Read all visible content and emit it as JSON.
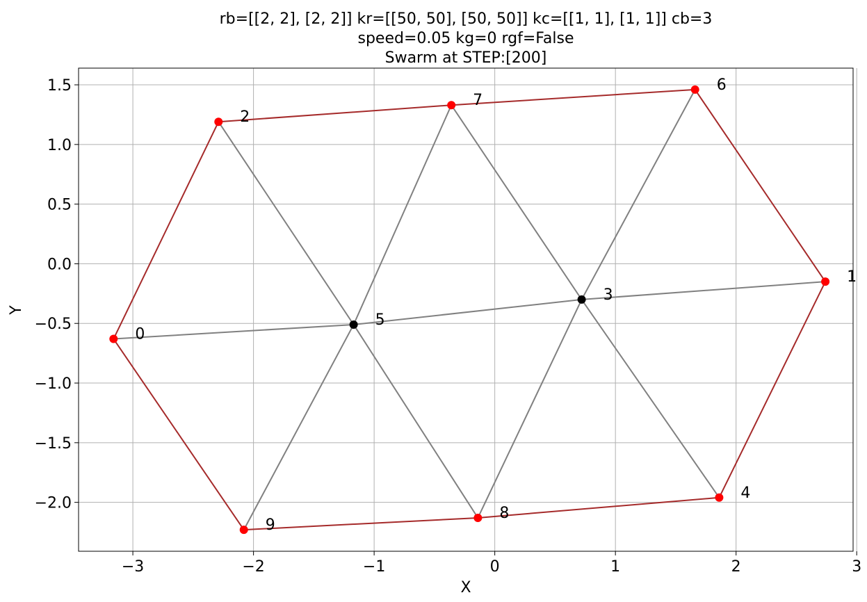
{
  "chart_data": {
    "type": "scatter",
    "title": [
      "rb=[[2, 2], [2, 2]] kr=[[50, 50], [50, 50]] kc=[[1, 1], [1, 1]] cb=3",
      "speed=0.05 kg=0 rgf=False",
      "Swarm at STEP:[200]"
    ],
    "xlabel": "X",
    "ylabel": "Y",
    "xlim": [
      -3.45,
      2.97
    ],
    "ylim": [
      -2.41,
      1.64
    ],
    "grid": true,
    "x_ticks": [
      {
        "value": -3,
        "label": "−3"
      },
      {
        "value": -2,
        "label": "−2"
      },
      {
        "value": -1,
        "label": "−1"
      },
      {
        "value": 0,
        "label": "0"
      },
      {
        "value": 1,
        "label": "1"
      },
      {
        "value": 2,
        "label": "2"
      },
      {
        "value": 3,
        "label": "3"
      }
    ],
    "y_ticks": [
      {
        "value": 1.5,
        "label": "1.5"
      },
      {
        "value": 1.0,
        "label": "1.0"
      },
      {
        "value": 0.5,
        "label": "0.5"
      },
      {
        "value": 0.0,
        "label": "0.0"
      },
      {
        "value": -0.5,
        "label": "−0.5"
      },
      {
        "value": -1.0,
        "label": "−1.0"
      },
      {
        "value": -1.5,
        "label": "−1.5"
      },
      {
        "value": -2.0,
        "label": "−2.0"
      }
    ],
    "nodes": [
      {
        "id": "0",
        "x": -3.16,
        "y": -0.63,
        "color": "#ff0000"
      },
      {
        "id": "1",
        "x": 2.74,
        "y": -0.15,
        "color": "#ff0000"
      },
      {
        "id": "2",
        "x": -2.29,
        "y": 1.19,
        "color": "#ff0000"
      },
      {
        "id": "3",
        "x": 0.72,
        "y": -0.3,
        "color": "#000000"
      },
      {
        "id": "4",
        "x": 1.86,
        "y": -1.96,
        "color": "#ff0000"
      },
      {
        "id": "5",
        "x": -1.17,
        "y": -0.51,
        "color": "#000000"
      },
      {
        "id": "6",
        "x": 1.66,
        "y": 1.46,
        "color": "#ff0000"
      },
      {
        "id": "7",
        "x": -0.36,
        "y": 1.33,
        "color": "#ff0000"
      },
      {
        "id": "8",
        "x": -0.14,
        "y": -2.13,
        "color": "#ff0000"
      },
      {
        "id": "9",
        "x": -2.08,
        "y": -2.23,
        "color": "#ff0000"
      }
    ],
    "edges": [
      {
        "from": "0",
        "to": "5",
        "kind": "interior"
      },
      {
        "from": "5",
        "to": "3",
        "kind": "interior"
      },
      {
        "from": "3",
        "to": "1",
        "kind": "interior"
      },
      {
        "from": "2",
        "to": "5",
        "kind": "interior"
      },
      {
        "from": "5",
        "to": "8",
        "kind": "interior"
      },
      {
        "from": "7",
        "to": "5",
        "kind": "interior"
      },
      {
        "from": "5",
        "to": "9",
        "kind": "interior"
      },
      {
        "from": "7",
        "to": "3",
        "kind": "interior"
      },
      {
        "from": "3",
        "to": "4",
        "kind": "interior"
      },
      {
        "from": "6",
        "to": "3",
        "kind": "interior"
      },
      {
        "from": "3",
        "to": "8",
        "kind": "interior"
      },
      {
        "from": "0",
        "to": "2",
        "kind": "boundary"
      },
      {
        "from": "2",
        "to": "7",
        "kind": "boundary"
      },
      {
        "from": "7",
        "to": "6",
        "kind": "boundary"
      },
      {
        "from": "6",
        "to": "1",
        "kind": "boundary"
      },
      {
        "from": "1",
        "to": "4",
        "kind": "boundary"
      },
      {
        "from": "4",
        "to": "8",
        "kind": "boundary"
      },
      {
        "from": "8",
        "to": "9",
        "kind": "boundary"
      },
      {
        "from": "9",
        "to": "0",
        "kind": "boundary"
      }
    ],
    "colors": {
      "boundary_edge": "#a52a2a",
      "interior_edge": "#808080",
      "boundary_node": "#ff0000",
      "interior_node": "#000000",
      "grid": "#b0b0b0"
    }
  }
}
